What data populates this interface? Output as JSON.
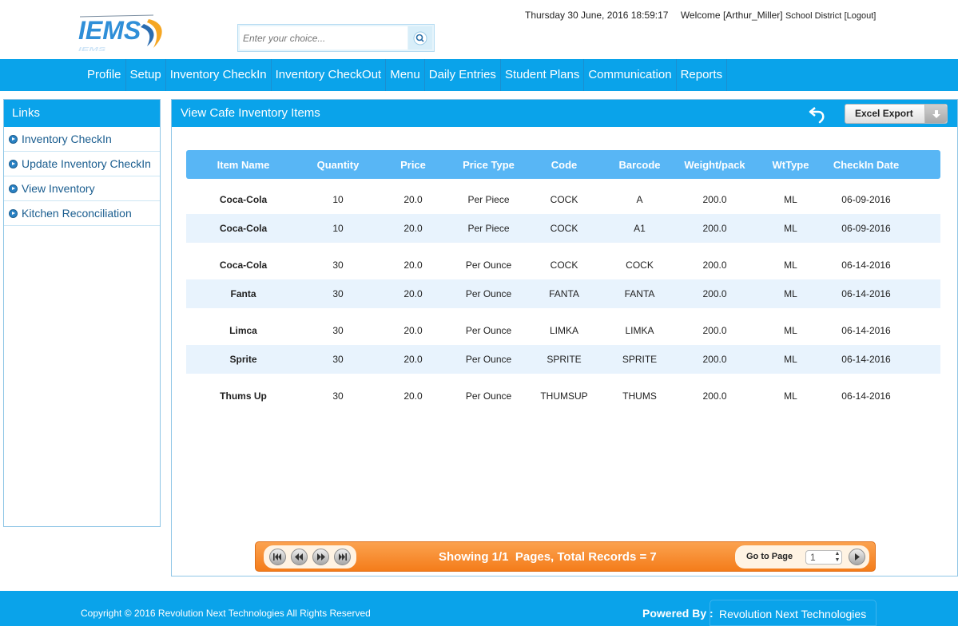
{
  "header": {
    "logo_text": "IEMS",
    "search_placeholder": "Enter your choice...",
    "datetime": "Thursday 30 June, 2016 18:59:17",
    "welcome": "Welcome [Arthur_Miller]",
    "district": "School District",
    "logout": "[Logout]"
  },
  "nav": {
    "items": [
      "Profile",
      "Setup",
      "Inventory CheckIn",
      "Inventory CheckOut",
      "Menu",
      "Daily Entries",
      "Student Plans",
      "Communication",
      "Reports"
    ]
  },
  "sidebar": {
    "title": "Links",
    "items": [
      "Inventory CheckIn",
      "Update Inventory CheckIn",
      "View Inventory",
      "Kitchen Reconciliation"
    ]
  },
  "main": {
    "title": "View Cafe Inventory Items",
    "excel_label": "Excel Export"
  },
  "table": {
    "columns": [
      "Item Name",
      "Quantity",
      "Price",
      "Price Type",
      "Code",
      "Barcode",
      "Weight/pack",
      "WtType",
      "CheckIn Date"
    ],
    "rows": [
      [
        "Coca-Cola",
        "10",
        "20.0",
        "Per Piece",
        "COCK",
        "A",
        "200.0",
        "ML",
        "06-09-2016"
      ],
      [
        "Coca-Cola",
        "10",
        "20.0",
        "Per Piece",
        "COCK",
        "A1",
        "200.0",
        "ML",
        "06-09-2016"
      ],
      [
        "Coca-Cola",
        "30",
        "20.0",
        "Per Ounce",
        "COCK",
        "COCK",
        "200.0",
        "ML",
        "06-14-2016"
      ],
      [
        "Fanta",
        "30",
        "20.0",
        "Per Ounce",
        "FANTA",
        "FANTA",
        "200.0",
        "ML",
        "06-14-2016"
      ],
      [
        "Limca",
        "30",
        "20.0",
        "Per Ounce",
        "LIMKA",
        "LIMKA",
        "200.0",
        "ML",
        "06-14-2016"
      ],
      [
        "Sprite",
        "30",
        "20.0",
        "Per Ounce",
        "SPRITE",
        "SPRITE",
        "200.0",
        "ML",
        "06-14-2016"
      ],
      [
        "Thums Up",
        "30",
        "20.0",
        "Per Ounce",
        "THUMSUP",
        "THUMS",
        "200.0",
        "ML",
        "06-14-2016"
      ]
    ]
  },
  "pager": {
    "status": "Showing 1/1  Pages, Total Records = 7",
    "goto_label": "Go to Page",
    "page_value": "1"
  },
  "footer": {
    "copyright": "Copyright © 2016 Revolution Next Technologies All Rights Reserved",
    "powered_label": "Powered By :",
    "powered_name": "Revolution Next Technologies"
  },
  "colors": {
    "primary": "#0aa3ea",
    "table_header": "#58b6f5",
    "row_alt": "#e8f3fd",
    "pager": "#f47c1a"
  }
}
